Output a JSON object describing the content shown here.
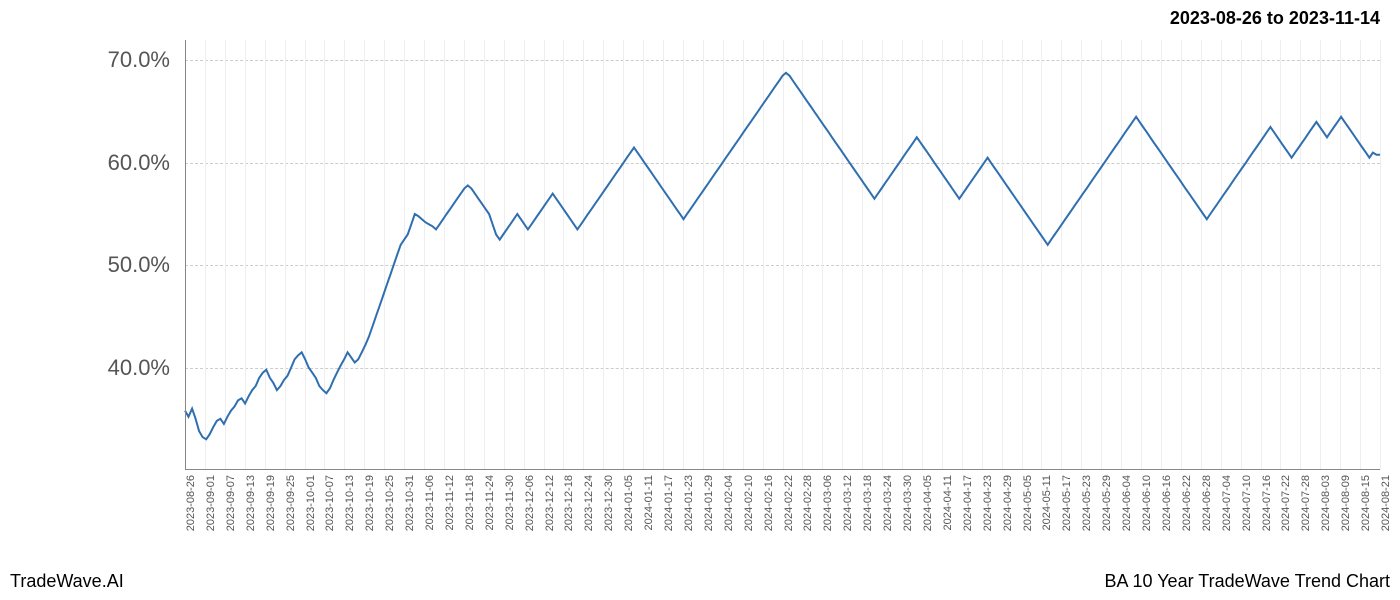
{
  "header": {
    "date_range": "2023-08-26 to 2023-11-14"
  },
  "footer": {
    "left": "TradeWave.AI",
    "right": "BA 10 Year TradeWave Trend Chart"
  },
  "chart": {
    "type": "line",
    "background_color": "#ffffff",
    "grid_color_h": "#cccccc",
    "grid_color_v": "#eeeeee",
    "line_color": "#2f6fb0",
    "line_width": 2,
    "highlight": {
      "start": "2023-08-26",
      "end": "2023-11-14",
      "fill": "rgba(140,200,140,0.25)"
    },
    "y_axis": {
      "min": 30,
      "max": 72,
      "ticks": [
        40,
        50,
        60,
        70
      ],
      "tick_labels": [
        "40.0%",
        "50.0%",
        "60.0%",
        "70.0%"
      ],
      "label_fontsize": 22,
      "label_color": "#555555"
    },
    "x_axis": {
      "labels": [
        "2023-08-26",
        "2023-09-01",
        "2023-09-07",
        "2023-09-13",
        "2023-09-19",
        "2023-09-25",
        "2023-10-01",
        "2023-10-07",
        "2023-10-13",
        "2023-10-19",
        "2023-10-25",
        "2023-10-31",
        "2023-11-06",
        "2023-11-12",
        "2023-11-18",
        "2023-11-24",
        "2023-11-30",
        "2023-12-06",
        "2023-12-12",
        "2023-12-18",
        "2023-12-24",
        "2023-12-30",
        "2024-01-05",
        "2024-01-11",
        "2024-01-17",
        "2024-01-23",
        "2024-01-29",
        "2024-02-04",
        "2024-02-10",
        "2024-02-16",
        "2024-02-22",
        "2024-02-28",
        "2024-03-06",
        "2024-03-12",
        "2024-03-18",
        "2024-03-24",
        "2024-03-30",
        "2024-04-05",
        "2024-04-11",
        "2024-04-17",
        "2024-04-23",
        "2024-04-29",
        "2024-05-05",
        "2024-05-11",
        "2024-05-17",
        "2024-05-23",
        "2024-05-29",
        "2024-06-04",
        "2024-06-10",
        "2024-06-16",
        "2024-06-22",
        "2024-06-28",
        "2024-07-04",
        "2024-07-10",
        "2024-07-16",
        "2024-07-22",
        "2024-07-28",
        "2024-08-03",
        "2024-08-09",
        "2024-08-15",
        "2024-08-21"
      ],
      "label_fontsize": 11,
      "label_color": "#555555",
      "rotation": -90
    },
    "series": [
      {
        "name": "BA_trend",
        "color": "#2f6fb0",
        "data": [
          35.8,
          35.2,
          36.0,
          35.0,
          33.8,
          33.2,
          33.0,
          33.5,
          34.2,
          34.8,
          35.0,
          34.5,
          35.2,
          35.8,
          36.2,
          36.8,
          37.0,
          36.5,
          37.2,
          37.8,
          38.2,
          39.0,
          39.5,
          39.8,
          39.0,
          38.5,
          37.8,
          38.2,
          38.8,
          39.2,
          40.0,
          40.8,
          41.2,
          41.5,
          40.8,
          40.0,
          39.5,
          39.0,
          38.2,
          37.8,
          37.5,
          38.0,
          38.8,
          39.5,
          40.2,
          40.8,
          41.5,
          41.0,
          40.5,
          40.8,
          41.5,
          42.2,
          43.0,
          44.0,
          45.0,
          46.0,
          47.0,
          48.0,
          49.0,
          50.0,
          51.0,
          52.0,
          52.5,
          53.0,
          54.0,
          55.0,
          54.8,
          54.5,
          54.2,
          54.0,
          53.8,
          53.5,
          54.0,
          54.5,
          55.0,
          55.5,
          56.0,
          56.5,
          57.0,
          57.5,
          57.8,
          57.5,
          57.0,
          56.5,
          56.0,
          55.5,
          55.0,
          54.0,
          53.0,
          52.5,
          53.0,
          53.5,
          54.0,
          54.5,
          55.0,
          54.5,
          54.0,
          53.5,
          54.0,
          54.5,
          55.0,
          55.5,
          56.0,
          56.5,
          57.0,
          56.5,
          56.0,
          55.5,
          55.0,
          54.5,
          54.0,
          53.5,
          54.0,
          54.5,
          55.0,
          55.5,
          56.0,
          56.5,
          57.0,
          57.5,
          58.0,
          58.5,
          59.0,
          59.5,
          60.0,
          60.5,
          61.0,
          61.5,
          61.0,
          60.5,
          60.0,
          59.5,
          59.0,
          58.5,
          58.0,
          57.5,
          57.0,
          56.5,
          56.0,
          55.5,
          55.0,
          54.5,
          55.0,
          55.5,
          56.0,
          56.5,
          57.0,
          57.5,
          58.0,
          58.5,
          59.0,
          59.5,
          60.0,
          60.5,
          61.0,
          61.5,
          62.0,
          62.5,
          63.0,
          63.5,
          64.0,
          64.5,
          65.0,
          65.5,
          66.0,
          66.5,
          67.0,
          67.5,
          68.0,
          68.5,
          68.8,
          68.5,
          68.0,
          67.5,
          67.0,
          66.5,
          66.0,
          65.5,
          65.0,
          64.5,
          64.0,
          63.5,
          63.0,
          62.5,
          62.0,
          61.5,
          61.0,
          60.5,
          60.0,
          59.5,
          59.0,
          58.5,
          58.0,
          57.5,
          57.0,
          56.5,
          57.0,
          57.5,
          58.0,
          58.5,
          59.0,
          59.5,
          60.0,
          60.5,
          61.0,
          61.5,
          62.0,
          62.5,
          62.0,
          61.5,
          61.0,
          60.5,
          60.0,
          59.5,
          59.0,
          58.5,
          58.0,
          57.5,
          57.0,
          56.5,
          57.0,
          57.5,
          58.0,
          58.5,
          59.0,
          59.5,
          60.0,
          60.5,
          60.0,
          59.5,
          59.0,
          58.5,
          58.0,
          57.5,
          57.0,
          56.5,
          56.0,
          55.5,
          55.0,
          54.5,
          54.0,
          53.5,
          53.0,
          52.5,
          52.0,
          52.5,
          53.0,
          53.5,
          54.0,
          54.5,
          55.0,
          55.5,
          56.0,
          56.5,
          57.0,
          57.5,
          58.0,
          58.5,
          59.0,
          59.5,
          60.0,
          60.5,
          61.0,
          61.5,
          62.0,
          62.5,
          63.0,
          63.5,
          64.0,
          64.5,
          64.0,
          63.5,
          63.0,
          62.5,
          62.0,
          61.5,
          61.0,
          60.5,
          60.0,
          59.5,
          59.0,
          58.5,
          58.0,
          57.5,
          57.0,
          56.5,
          56.0,
          55.5,
          55.0,
          54.5,
          55.0,
          55.5,
          56.0,
          56.5,
          57.0,
          57.5,
          58.0,
          58.5,
          59.0,
          59.5,
          60.0,
          60.5,
          61.0,
          61.5,
          62.0,
          62.5,
          63.0,
          63.5,
          63.0,
          62.5,
          62.0,
          61.5,
          61.0,
          60.5,
          61.0,
          61.5,
          62.0,
          62.5,
          63.0,
          63.5,
          64.0,
          63.5,
          63.0,
          62.5,
          63.0,
          63.5,
          64.0,
          64.5,
          64.0,
          63.5,
          63.0,
          62.5,
          62.0,
          61.5,
          61.0,
          60.5,
          61.0,
          60.8,
          60.8
        ]
      }
    ]
  }
}
